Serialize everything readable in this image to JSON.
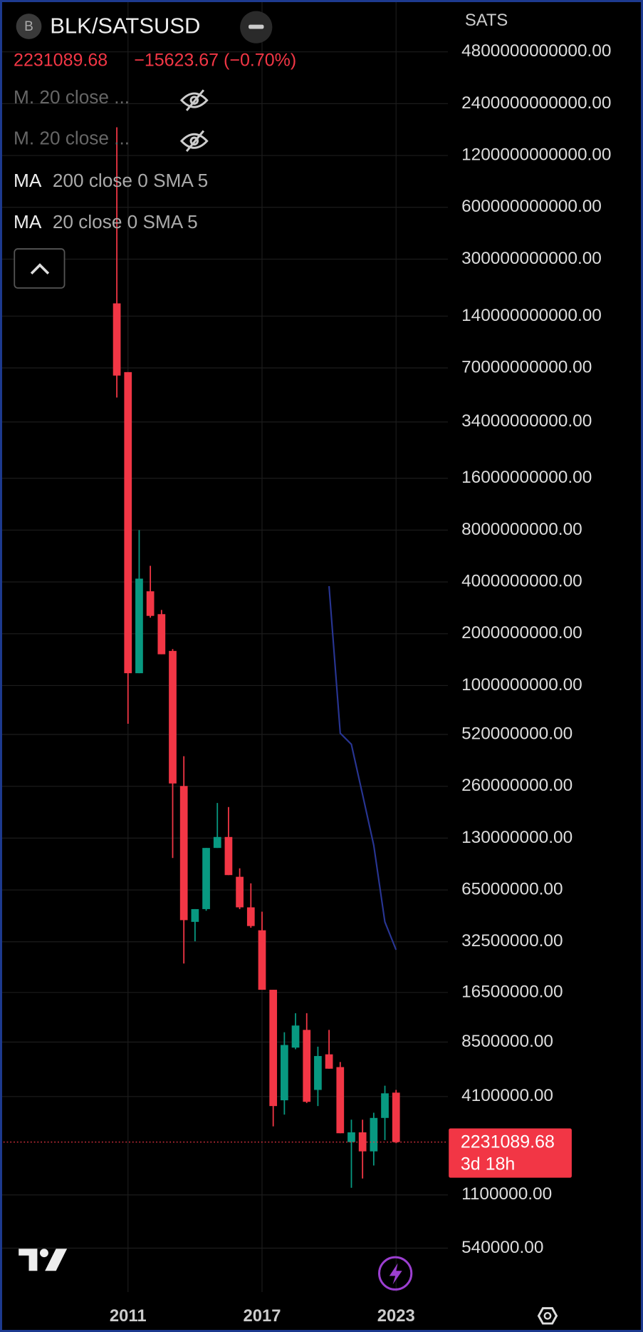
{
  "chart_data": {
    "type": "candlestick",
    "symbol_icon": "B",
    "symbol": "BLK/SATSUSD",
    "change_label": "−15623.67 (−0.70%)",
    "hidden_indicators": [
      "M. 20 close ...",
      "M. 20 close ..."
    ],
    "indicators": [
      {
        "name": "MA",
        "params": "200 close 0 SMA 5"
      },
      {
        "name": "MA",
        "params": "20 close 0 SMA 5"
      }
    ],
    "y_label": "SATS",
    "countdown": "3d 18h",
    "log_scale": true,
    "grid": true,
    "up_color": "#089981",
    "down_color": "#f23645",
    "x": [
      2010.5,
      2011,
      2011.5,
      2012,
      2012.5,
      2013,
      2013.5,
      2014,
      2014.5,
      2015,
      2015.5,
      2016,
      2016.5,
      2017,
      2017.5,
      2018,
      2018.5,
      2019,
      2019.5,
      2020,
      2020.5,
      2021,
      2021.5,
      2022,
      2022.5,
      2023
    ],
    "open": [
      166000000000,
      66200000000,
      1180000000,
      3530000000,
      2600000000,
      1590000000,
      261000000,
      42400000,
      50300000,
      114000000,
      132000000,
      77500000,
      51500000,
      37900000,
      17100000,
      3900000,
      7890000,
      10000000,
      4480000,
      7210000,
      6080000,
      2230000,
      2540000,
      1970000,
      3080000,
      4320000
    ],
    "high": [
      1750000000000,
      66200000000,
      8000000000,
      4960000000,
      2750000000,
      1630000000,
      389000000,
      50300000,
      114000000,
      208000000,
      197000000,
      86800000,
      71000000,
      48600000,
      17100000,
      9690000,
      12500000,
      12500000,
      7990000,
      10000000,
      6510000,
      3010000,
      3010000,
      3300000,
      4740000,
      4480000
    ],
    "low": [
      47100000000,
      600000000,
      1180000000,
      2480000000,
      1520000000,
      99600000,
      24300000,
      32700000,
      49200000,
      114000000,
      79300000,
      50300000,
      39200000,
      17100000,
      2750000,
      3220000,
      7720000,
      3760000,
      3610000,
      5950000,
      2510000,
      1210000,
      1370000,
      1630000,
      2290000,
      2200000
    ],
    "close": [
      63200000000,
      1180000000,
      4180000000,
      2540000000,
      1520000000,
      270000000,
      43400000,
      50300000,
      114000000,
      132000000,
      79300000,
      51500000,
      40100000,
      17100000,
      3610000,
      8170000,
      10600000,
      3820000,
      7050000,
      5950000,
      2510000,
      2540000,
      1970000,
      3080000,
      4280000,
      2231089.68
    ],
    "ma": {
      "color": "#283593",
      "values": [
        null,
        null,
        null,
        null,
        null,
        null,
        null,
        null,
        null,
        null,
        null,
        null,
        null,
        null,
        null,
        null,
        null,
        null,
        null,
        3780000000,
        529000000,
        456000000,
        233000000,
        118000000,
        42400000,
        29200000
      ]
    },
    "xlim": [
      2005.27,
      2025.32
    ],
    "xticks": [
      2011,
      2017,
      2023
    ],
    "ylim": [
      300000,
      9600000000000
    ],
    "yticks": [
      {
        "value": 4800000000000,
        "label": "4800000000000.00"
      },
      {
        "value": 2400000000000,
        "label": "2400000000000.00"
      },
      {
        "value": 1200000000000,
        "label": "1200000000000.00"
      },
      {
        "value": 600000000000,
        "label": "600000000000.00"
      },
      {
        "value": 300000000000,
        "label": "300000000000.00"
      },
      {
        "value": 140000000000,
        "label": "140000000000.00"
      },
      {
        "value": 70000000000,
        "label": "70000000000.00"
      },
      {
        "value": 34000000000,
        "label": "34000000000.00"
      },
      {
        "value": 16000000000,
        "label": "16000000000.00"
      },
      {
        "value": 8000000000,
        "label": "8000000000.00"
      },
      {
        "value": 4000000000,
        "label": "4000000000.00"
      },
      {
        "value": 2000000000,
        "label": "2000000000.00"
      },
      {
        "value": 1000000000,
        "label": "1000000000.00"
      },
      {
        "value": 520000000,
        "label": "520000000.00"
      },
      {
        "value": 260000000,
        "label": "260000000.00"
      },
      {
        "value": 130000000,
        "label": "130000000.00"
      },
      {
        "value": 65000000,
        "label": "65000000.00"
      },
      {
        "value": 32500000,
        "label": "32500000.00"
      },
      {
        "value": 16500000,
        "label": "16500000.00"
      },
      {
        "value": 8500000,
        "label": "8500000.00"
      },
      {
        "value": 4100000,
        "label": "4100000.00"
      },
      {
        "value": 1100000,
        "label": "1100000.00"
      },
      {
        "value": 540000,
        "label": "540000.00"
      }
    ]
  }
}
